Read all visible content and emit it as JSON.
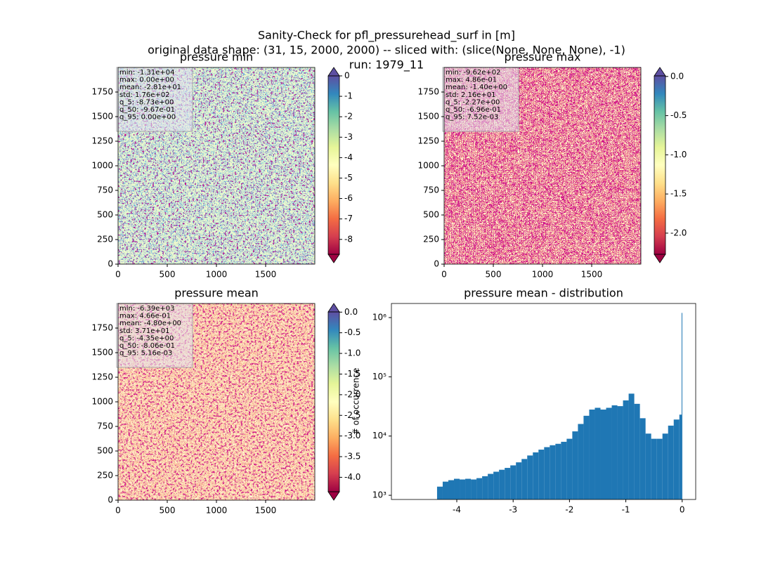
{
  "figure": {
    "title_lines": [
      "Sanity-Check for pfl_pressurehead_surf in [m]",
      "original data shape: (31, 15, 2000, 2000) -- sliced with: (slice(None, None, None), -1)",
      "run: 1979_11"
    ]
  },
  "chart_data": [
    {
      "type": "heatmap",
      "title": "pressure min",
      "xlim": [
        0,
        2000
      ],
      "ylim": [
        0,
        2000
      ],
      "xticks": [
        0,
        500,
        1000,
        1500
      ],
      "yticks": [
        0,
        250,
        500,
        750,
        1000,
        1250,
        1500,
        1750
      ],
      "colormap": "Spectral",
      "colorbar": {
        "lim": [
          -8.73,
          0
        ],
        "ticks": [
          0,
          -1,
          -2,
          -3,
          -4,
          -5,
          -6,
          -7,
          -8
        ],
        "extend": "both"
      },
      "stats": [
        "min: -1.31e+04",
        "max: 0.00e+00",
        "mean: -2.81e+01",
        "std: 1.76e+02",
        "q_5: -8.73e+00",
        "q_50: -9.67e-01",
        "q_95: 0.00e+00"
      ]
    },
    {
      "type": "heatmap",
      "title": "pressure max",
      "xlim": [
        0,
        2000
      ],
      "ylim": [
        0,
        2000
      ],
      "xticks": [
        0,
        500,
        1000,
        1500
      ],
      "yticks": [
        0,
        250,
        500,
        750,
        1000,
        1250,
        1500,
        1750
      ],
      "colormap": "Spectral",
      "colorbar": {
        "lim": [
          -2.27,
          0.0075
        ],
        "ticks": [
          {
            "value": 0,
            "label": "0.0"
          },
          {
            "value": -0.5,
            "label": "-0.5"
          },
          {
            "value": -1,
            "label": "-1.0"
          },
          {
            "value": -1.5,
            "label": "-1.5"
          },
          {
            "value": -2,
            "label": "-2.0"
          }
        ],
        "extend": "both"
      },
      "stats": [
        "min: -9.62e+02",
        "max: 4.86e-01",
        "mean: -1.40e+00",
        "std: 2.16e+01",
        "q_5: -2.27e+00",
        "q_50: -6.96e-01",
        "q_95: 7.52e-03"
      ]
    },
    {
      "type": "heatmap",
      "title": "pressure mean",
      "xlim": [
        0,
        2000
      ],
      "ylim": [
        0,
        2000
      ],
      "xticks": [
        0,
        500,
        1000,
        1500
      ],
      "yticks": [
        0,
        250,
        500,
        750,
        1000,
        1250,
        1500,
        1750
      ],
      "colormap": "Spectral",
      "colorbar": {
        "lim": [
          -4.35,
          0.005
        ],
        "ticks": [
          {
            "value": 0,
            "label": "0.0"
          },
          {
            "value": -0.5,
            "label": "-0.5"
          },
          {
            "value": -1,
            "label": "-1.0"
          },
          {
            "value": -1.5,
            "label": "-1.5"
          },
          {
            "value": -2,
            "label": "-2.0"
          },
          {
            "value": -2.5,
            "label": "-2.5"
          },
          {
            "value": -3,
            "label": "-3.0"
          },
          {
            "value": -3.5,
            "label": "-3.5"
          },
          {
            "value": -4,
            "label": "-4.0"
          }
        ],
        "extend": "both"
      },
      "stats": [
        "min: -6.39e+03",
        "max: 4.66e-01",
        "mean: -4.80e+00",
        "std: 3.71e+01",
        "q_5: -4.35e+00",
        "q_50: -8.06e-01",
        "q_95: 5.16e-03"
      ]
    },
    {
      "type": "histogram",
      "title": "pressure mean - distribution",
      "ylabel": "# of occurrence",
      "color": "#1f77b4",
      "yscale": "log",
      "bins": [
        -4.35,
        -4.25,
        -4.15,
        -4.05,
        -3.95,
        -3.85,
        -3.75,
        -3.65,
        -3.55,
        -3.45,
        -3.35,
        -3.25,
        -3.15,
        -3.05,
        -2.95,
        -2.85,
        -2.75,
        -2.65,
        -2.55,
        -2.45,
        -2.35,
        -2.25,
        -2.15,
        -2.05,
        -1.95,
        -1.85,
        -1.75,
        -1.65,
        -1.55,
        -1.45,
        -1.35,
        -1.25,
        -1.15,
        -1.05,
        -0.95,
        -0.85,
        -0.75,
        -0.65,
        -0.55,
        -0.45,
        -0.35,
        -0.25,
        -0.15,
        -0.05,
        -0.01,
        0.0
      ],
      "values": [
        1400,
        1700,
        1800,
        1900,
        1850,
        1900,
        1850,
        1950,
        2100,
        2300,
        2500,
        2700,
        2900,
        3200,
        3600,
        4100,
        4700,
        5300,
        5900,
        6500,
        7000,
        7400,
        8000,
        9000,
        12000,
        16000,
        22000,
        28000,
        30000,
        28000,
        30000,
        33000,
        32000,
        40000,
        52000,
        35000,
        20000,
        11000,
        9000,
        9000,
        11000,
        15000,
        19000,
        23000,
        1200000
      ],
      "xlim": [
        -5.16,
        0.24
      ],
      "xticks": [
        -4,
        -3,
        -2,
        -1,
        0
      ],
      "ylim": [
        850,
        1730000
      ],
      "yticks": [
        {
          "value": 1000,
          "label": "10³"
        },
        {
          "value": 10000,
          "label": "10⁴"
        },
        {
          "value": 100000,
          "label": "10⁵"
        },
        {
          "value": 1000000,
          "label": "10⁶"
        }
      ]
    }
  ]
}
